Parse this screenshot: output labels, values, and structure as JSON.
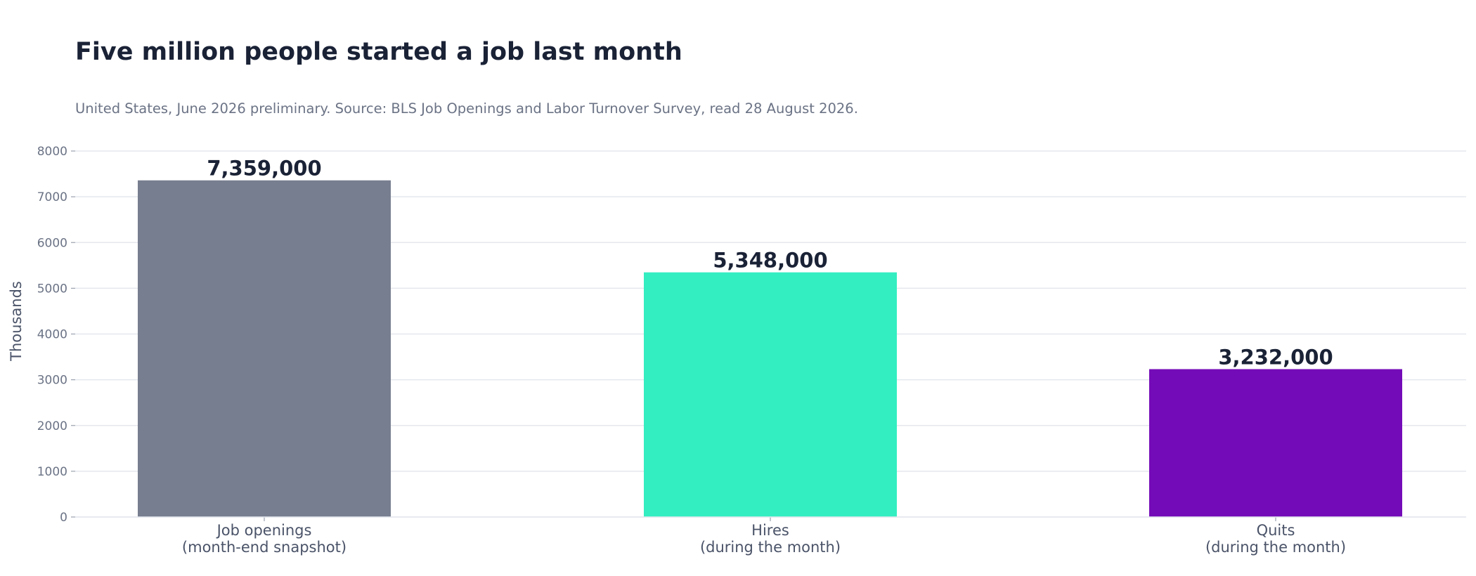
{
  "chart_data": {
    "type": "bar",
    "title": "Five million people started a job last month",
    "subtitle": "United States, June 2026 preliminary. Source: BLS Job Openings and Labor Turnover Survey, read 28 August 2026.",
    "ylabel": "Thousands",
    "ylim": [
      0,
      8000
    ],
    "yticks": [
      0,
      1000,
      2000,
      3000,
      4000,
      5000,
      6000,
      7000,
      8000
    ],
    "grid": true,
    "categories": [
      [
        "Job openings",
        "(month-end snapshot)"
      ],
      [
        "Hires",
        "(during the month)"
      ],
      [
        "Quits",
        "(during the month)"
      ]
    ],
    "values": [
      7359,
      5348,
      3232
    ],
    "data_labels": [
      "7,359,000",
      "5,348,000",
      "3,232,000"
    ],
    "colors": [
      "#777e8f",
      "#33eec1",
      "#740bb8"
    ]
  }
}
